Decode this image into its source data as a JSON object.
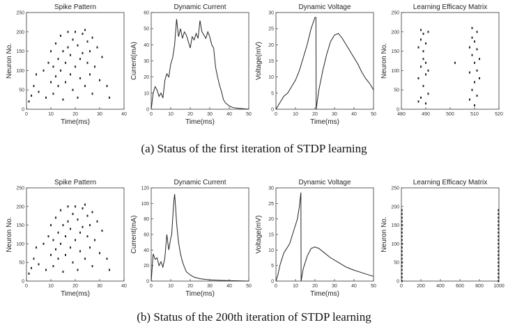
{
  "captions": {
    "a": "(a) Status of the first iteration of STDP learning",
    "b": "(b) Status of the 200th iteration of STDP learning"
  },
  "chart_data": [
    {
      "type": "scatter",
      "title": "Spike Pattern",
      "xlabel": "Time(ms)",
      "ylabel": "Neuron No.",
      "xlim": [
        0,
        40
      ],
      "ylim": [
        0,
        250
      ],
      "xticks": [
        0,
        10,
        20,
        30,
        40
      ],
      "yticks": [
        0,
        50,
        100,
        150,
        200,
        250
      ],
      "x": [
        1,
        2,
        3,
        4,
        5,
        7,
        8,
        9,
        10,
        10,
        11,
        11,
        12,
        12,
        13,
        13,
        14,
        14,
        15,
        15,
        16,
        16,
        17,
        17,
        18,
        18,
        19,
        19,
        20,
        20,
        21,
        21,
        22,
        22,
        23,
        23,
        24,
        24,
        25,
        25,
        26,
        26,
        27,
        27,
        28,
        29,
        30,
        31,
        33,
        34
      ],
      "y": [
        20,
        35,
        60,
        90,
        45,
        100,
        30,
        120,
        70,
        150,
        110,
        40,
        170,
        85,
        130,
        60,
        190,
        100,
        150,
        25,
        120,
        70,
        200,
        160,
        90,
        140,
        180,
        50,
        110,
        200,
        165,
        30,
        130,
        80,
        195,
        145,
        60,
        205,
        120,
        175,
        90,
        150,
        40,
        185,
        110,
        160,
        75,
        135,
        60,
        30
      ]
    },
    {
      "type": "line",
      "title": "Dynamic Current",
      "xlabel": "Time(ms)",
      "ylabel": "Current(mA)",
      "xlim": [
        0,
        50
      ],
      "ylim": [
        0,
        60
      ],
      "xticks": [
        0,
        10,
        20,
        30,
        40,
        50
      ],
      "yticks": [
        0,
        10,
        20,
        30,
        40,
        50,
        60
      ],
      "x": [
        0,
        1,
        2,
        3,
        4,
        5,
        6,
        7,
        8,
        9,
        10,
        11,
        12,
        13,
        14,
        15,
        16,
        17,
        18,
        19,
        20,
        21,
        22,
        23,
        24,
        25,
        26,
        27,
        28,
        29,
        30,
        31,
        32,
        33,
        34,
        35,
        36,
        37,
        38,
        40,
        42,
        45,
        50
      ],
      "y": [
        0,
        10,
        14,
        12,
        8,
        10,
        7,
        18,
        22,
        20,
        28,
        32,
        40,
        56,
        45,
        50,
        44,
        48,
        46,
        42,
        38,
        45,
        43,
        47,
        44,
        55,
        48,
        46,
        44,
        48,
        45,
        40,
        38,
        26,
        20,
        15,
        11,
        6,
        4,
        2,
        1,
        0.5,
        0
      ]
    },
    {
      "type": "line",
      "title": "Dynamic Voltage",
      "xlabel": "Time(ms)",
      "ylabel": "Voltage(mV)",
      "xlim": [
        0,
        50
      ],
      "ylim": [
        0,
        30
      ],
      "xticks": [
        0,
        10,
        20,
        30,
        40,
        50
      ],
      "yticks": [
        0,
        5,
        10,
        15,
        20,
        25,
        30
      ],
      "x": [
        0,
        2,
        4,
        6,
        8,
        10,
        12,
        14,
        16,
        18,
        20,
        20.5,
        20.6,
        22,
        24,
        26,
        28,
        30,
        32,
        34,
        36,
        38,
        40,
        42,
        44,
        46,
        48,
        50
      ],
      "y": [
        0,
        2,
        4,
        5,
        7,
        9,
        12,
        16,
        20,
        25,
        28.5,
        28.5,
        0,
        6,
        12,
        17,
        21,
        23,
        23.5,
        22,
        20,
        18,
        16,
        14,
        11.5,
        9.5,
        8,
        6
      ]
    },
    {
      "type": "scatter",
      "title": "Learning Efficacy Matrix",
      "xlabel": "",
      "ylabel": "Neuron No.",
      "xlim": [
        480,
        520
      ],
      "ylim": [
        0,
        250
      ],
      "xticks": [
        480,
        490,
        500,
        510,
        520
      ],
      "yticks": [
        0,
        50,
        100,
        150,
        200,
        250
      ],
      "x": [
        487,
        487,
        487,
        488,
        488,
        488,
        488,
        489,
        489,
        489,
        489,
        490,
        490,
        490,
        490,
        491,
        491,
        491,
        502,
        508,
        508,
        508,
        509,
        509,
        509,
        509,
        510,
        510,
        510,
        510,
        511,
        511,
        511,
        511,
        512,
        512
      ],
      "y": [
        20,
        80,
        160,
        30,
        110,
        180,
        205,
        60,
        130,
        150,
        195,
        15,
        90,
        170,
        120,
        40,
        100,
        200,
        120,
        25,
        95,
        160,
        50,
        140,
        185,
        210,
        10,
        70,
        120,
        175,
        35,
        100,
        155,
        200,
        80,
        130
      ]
    },
    {
      "type": "scatter",
      "title": "Spike Pattern",
      "xlabel": "Time(ms)",
      "ylabel": "Neuron No.",
      "xlim": [
        0,
        40
      ],
      "ylim": [
        0,
        250
      ],
      "xticks": [
        0,
        10,
        20,
        30,
        40
      ],
      "yticks": [
        0,
        50,
        100,
        150,
        200,
        250
      ],
      "x": [
        1,
        2,
        3,
        4,
        5,
        7,
        8,
        9,
        10,
        10,
        11,
        11,
        12,
        12,
        13,
        13,
        14,
        14,
        15,
        15,
        16,
        16,
        17,
        17,
        18,
        18,
        19,
        19,
        20,
        20,
        21,
        21,
        22,
        22,
        23,
        23,
        24,
        24,
        25,
        25,
        26,
        26,
        27,
        27,
        28,
        29,
        30,
        31,
        33,
        34
      ],
      "y": [
        20,
        35,
        60,
        90,
        45,
        100,
        30,
        120,
        70,
        150,
        110,
        40,
        170,
        85,
        130,
        60,
        190,
        100,
        150,
        25,
        120,
        70,
        200,
        160,
        90,
        140,
        180,
        50,
        110,
        200,
        165,
        30,
        130,
        80,
        195,
        145,
        60,
        205,
        120,
        175,
        90,
        150,
        40,
        185,
        110,
        160,
        75,
        135,
        60,
        30
      ]
    },
    {
      "type": "line",
      "title": "Dynamic Current",
      "xlabel": "Time(ms)",
      "ylabel": "Current(mA)",
      "xlim": [
        0,
        50
      ],
      "ylim": [
        0,
        120
      ],
      "xticks": [
        0,
        10,
        20,
        30,
        40,
        50
      ],
      "yticks": [
        0,
        20,
        40,
        60,
        80,
        100,
        120
      ],
      "x": [
        0,
        1,
        2,
        3,
        4,
        5,
        6,
        7,
        8,
        9,
        10,
        10.5,
        11,
        11.5,
        12,
        12.5,
        13,
        14,
        15,
        16,
        17,
        18,
        20,
        22,
        25,
        30,
        35,
        40,
        50
      ],
      "y": [
        0,
        35,
        28,
        30,
        20,
        25,
        18,
        30,
        60,
        40,
        55,
        60,
        80,
        100,
        112,
        95,
        75,
        50,
        35,
        25,
        18,
        12,
        8,
        5,
        3,
        1.5,
        1,
        0.5,
        0
      ]
    },
    {
      "type": "line",
      "title": "Dynamic Voltage",
      "xlabel": "Time(ms)",
      "ylabel": "Voltage(mV)",
      "xlim": [
        0,
        50
      ],
      "ylim": [
        0,
        30
      ],
      "xticks": [
        0,
        10,
        20,
        30,
        40,
        50
      ],
      "yticks": [
        0,
        5,
        10,
        15,
        20,
        25,
        30
      ],
      "x": [
        0,
        1,
        2,
        3,
        4,
        5,
        6,
        7,
        8,
        9,
        10,
        11,
        12,
        12.8,
        12.9,
        14,
        16,
        18,
        20,
        22,
        25,
        28,
        32,
        36,
        40,
        45,
        50
      ],
      "y": [
        0,
        2,
        5,
        7,
        9,
        10,
        11,
        12,
        14,
        16,
        18,
        20,
        24,
        28.5,
        0,
        4,
        8,
        10.5,
        11,
        10.5,
        9,
        7.5,
        6,
        4.5,
        3.5,
        2.5,
        1.5
      ]
    },
    {
      "type": "scatter",
      "title": "Learning Efficacy Matrix",
      "xlabel": "",
      "ylabel": "Neuron No.",
      "xlim": [
        0,
        1000
      ],
      "ylim": [
        0,
        250
      ],
      "xticks": [
        0,
        200,
        400,
        600,
        800,
        1000
      ],
      "yticks": [
        0,
        50,
        100,
        150,
        200,
        250
      ],
      "x": [
        5,
        5,
        5,
        5,
        5,
        5,
        5,
        5,
        5,
        5,
        5,
        5,
        5,
        5,
        5,
        5,
        5,
        5,
        5,
        5,
        995,
        995,
        995,
        995,
        995,
        995,
        995,
        995,
        995,
        995,
        995,
        995,
        995,
        995,
        995,
        995,
        995,
        995,
        995,
        995
      ],
      "y": [
        0,
        10,
        20,
        30,
        40,
        50,
        60,
        70,
        80,
        90,
        100,
        110,
        120,
        130,
        140,
        150,
        160,
        170,
        180,
        190,
        0,
        10,
        20,
        30,
        40,
        50,
        60,
        70,
        80,
        90,
        100,
        110,
        120,
        130,
        140,
        150,
        160,
        170,
        180,
        190
      ]
    }
  ]
}
